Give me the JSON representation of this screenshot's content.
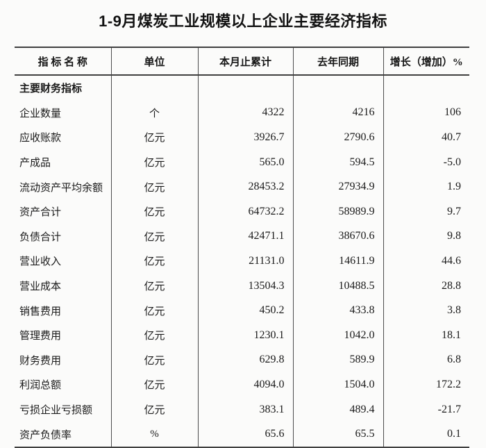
{
  "title": "1-9月煤炭工业规模以上企业主要经济指标",
  "table": {
    "columns": [
      "指 标 名 称",
      "单位",
      "本月止累计",
      "去年同期",
      "增长（增加）%"
    ],
    "section_header": "主要财务指标",
    "rows": [
      {
        "indicator": "企业数量",
        "unit": "个",
        "current": "4322",
        "last_year": "4216",
        "growth": "106"
      },
      {
        "indicator": "应收账款",
        "unit": "亿元",
        "current": "3926.7",
        "last_year": "2790.6",
        "growth": "40.7"
      },
      {
        "indicator": "产成品",
        "unit": "亿元",
        "current": "565.0",
        "last_year": "594.5",
        "growth": "-5.0"
      },
      {
        "indicator": "流动资产平均余额",
        "unit": "亿元",
        "current": "28453.2",
        "last_year": "27934.9",
        "growth": "1.9"
      },
      {
        "indicator": "资产合计",
        "unit": "亿元",
        "current": "64732.2",
        "last_year": "58989.9",
        "growth": "9.7"
      },
      {
        "indicator": "负债合计",
        "unit": "亿元",
        "current": "42471.1",
        "last_year": "38670.6",
        "growth": "9.8"
      },
      {
        "indicator": "营业收入",
        "unit": "亿元",
        "current": "21131.0",
        "last_year": "14611.9",
        "growth": "44.6"
      },
      {
        "indicator": "营业成本",
        "unit": "亿元",
        "current": "13504.3",
        "last_year": "10488.5",
        "growth": "28.8"
      },
      {
        "indicator": "销售费用",
        "unit": "亿元",
        "current": "450.2",
        "last_year": "433.8",
        "growth": "3.8"
      },
      {
        "indicator": "管理费用",
        "unit": "亿元",
        "current": "1230.1",
        "last_year": "1042.0",
        "growth": "18.1"
      },
      {
        "indicator": "财务费用",
        "unit": "亿元",
        "current": "629.8",
        "last_year": "589.9",
        "growth": "6.8"
      },
      {
        "indicator": "利润总额",
        "unit": "亿元",
        "current": "4094.0",
        "last_year": "1504.0",
        "growth": "172.2"
      },
      {
        "indicator": "亏损企业亏损额",
        "unit": "亿元",
        "current": "383.1",
        "last_year": "489.4",
        "growth": "-21.7"
      },
      {
        "indicator": "资产负债率",
        "unit": "%",
        "current": "65.6",
        "last_year": "65.5",
        "growth": "0.1"
      }
    ]
  },
  "colors": {
    "background": "#fbfbfa",
    "text": "#1a1a1a",
    "border": "#3f3f3f"
  }
}
